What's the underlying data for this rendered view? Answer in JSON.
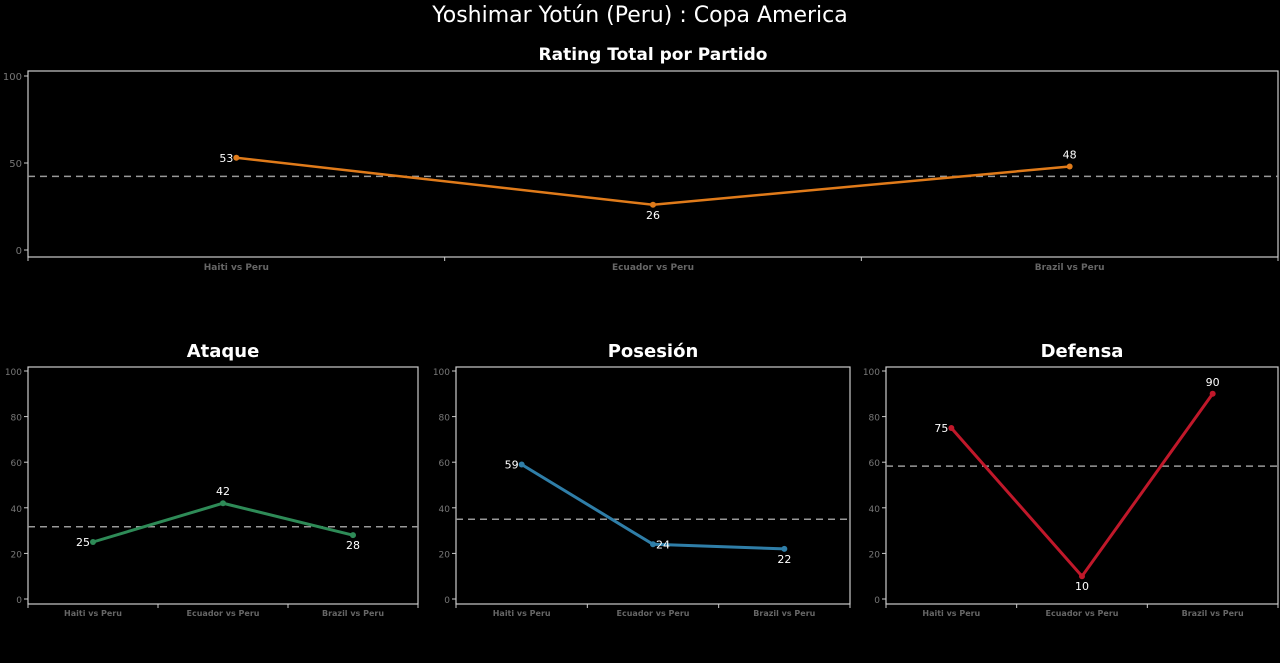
{
  "title": "Yoshimar Yotún (Peru) :  Copa  America",
  "chart_data": [
    {
      "type": "line",
      "title": "Rating Total por Partido",
      "categories": [
        "Haiti vs Peru",
        "Ecuador vs Peru",
        "Brazil vs Peru"
      ],
      "values": [
        53,
        26,
        48
      ],
      "mean": 42.3,
      "ylim": [
        0,
        100
      ],
      "yticks": [
        0,
        50,
        100
      ],
      "color": "#e07b1a"
    },
    {
      "type": "line",
      "title": "Ataque",
      "categories": [
        "Haiti vs Peru",
        "Ecuador vs Peru",
        "Brazil vs Peru"
      ],
      "values": [
        25,
        42,
        28
      ],
      "mean": 31.7,
      "ylim": [
        0,
        100
      ],
      "yticks": [
        0,
        20,
        40,
        60,
        80,
        100
      ],
      "color": "#2e8b57"
    },
    {
      "type": "line",
      "title": "Posesión",
      "categories": [
        "Haiti vs Peru",
        "Ecuador vs Peru",
        "Brazil vs Peru"
      ],
      "values": [
        59,
        24,
        22
      ],
      "mean": 35,
      "ylim": [
        0,
        100
      ],
      "yticks": [
        0,
        20,
        40,
        60,
        80,
        100
      ],
      "color": "#2f7ea8"
    },
    {
      "type": "line",
      "title": "Defensa",
      "categories": [
        "Haiti vs Peru",
        "Ecuador vs Peru",
        "Brazil vs Peru"
      ],
      "values": [
        75,
        10,
        90
      ],
      "mean": 58.3,
      "ylim": [
        0,
        100
      ],
      "yticks": [
        0,
        20,
        40,
        60,
        80,
        100
      ],
      "color": "#c0182a"
    }
  ]
}
